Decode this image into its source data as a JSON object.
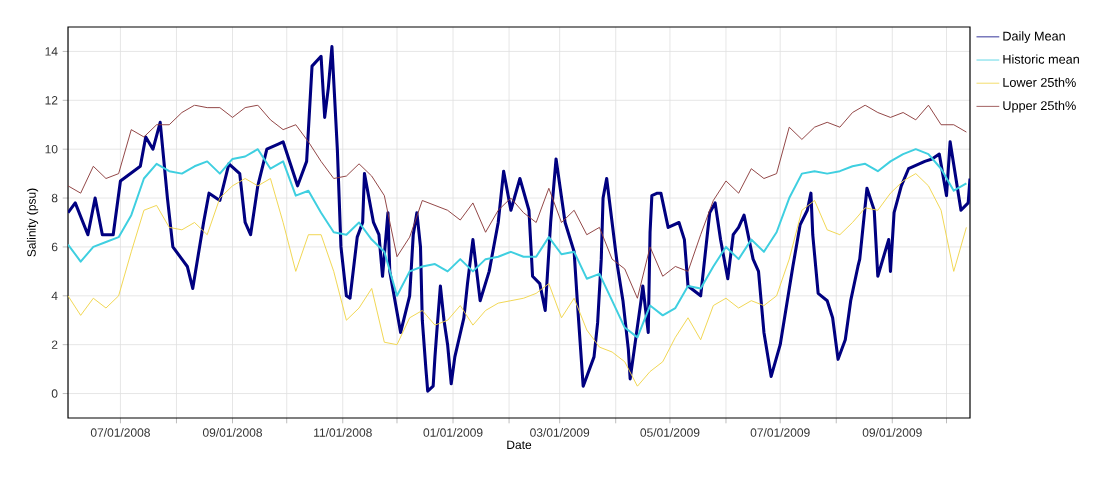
{
  "chart_data": {
    "type": "line",
    "xlabel": "Date",
    "ylabel": "Salinity (psu)",
    "xlim": [
      "2008-06-02",
      "2009-10-14"
    ],
    "ylim": [
      -1,
      15
    ],
    "xticks": [
      {
        "value": "2008-07-01",
        "label": "07/01/2008"
      },
      {
        "value": "2008-08-01",
        "label": null
      },
      {
        "value": "2008-09-01",
        "label": "09/01/2008"
      },
      {
        "value": "2008-10-01",
        "label": null
      },
      {
        "value": "2008-11-01",
        "label": "11/01/2008"
      },
      {
        "value": "2008-12-01",
        "label": null
      },
      {
        "value": "2009-01-01",
        "label": "01/01/2009"
      },
      {
        "value": "2009-02-01",
        "label": null
      },
      {
        "value": "2009-03-01",
        "label": "03/01/2009"
      },
      {
        "value": "2009-04-01",
        "label": null
      },
      {
        "value": "2009-05-01",
        "label": "05/01/2009"
      },
      {
        "value": "2009-06-01",
        "label": null
      },
      {
        "value": "2009-07-01",
        "label": "07/01/2009"
      },
      {
        "value": "2009-08-01",
        "label": null
      },
      {
        "value": "2009-09-01",
        "label": "09/01/2009"
      },
      {
        "value": "2009-10-01",
        "label": null
      }
    ],
    "yticks": [
      0,
      2,
      4,
      6,
      8,
      10,
      12,
      14
    ],
    "grid": true,
    "legend": "right",
    "x": [
      "2008-06-02",
      "2008-06-09",
      "2008-06-16",
      "2008-06-23",
      "2008-06-30",
      "2008-07-07",
      "2008-07-14",
      "2008-07-21",
      "2008-07-28",
      "2008-08-04",
      "2008-08-11",
      "2008-08-18",
      "2008-08-25",
      "2008-09-01",
      "2008-09-08",
      "2008-09-15",
      "2008-09-22",
      "2008-09-29",
      "2008-10-06",
      "2008-10-13",
      "2008-10-20",
      "2008-10-27",
      "2008-11-03",
      "2008-11-10",
      "2008-11-17",
      "2008-11-24",
      "2008-12-01",
      "2008-12-08",
      "2008-12-15",
      "2008-12-22",
      "2008-12-29",
      "2009-01-05",
      "2009-01-12",
      "2009-01-19",
      "2009-01-26",
      "2009-02-02",
      "2009-02-09",
      "2009-02-16",
      "2009-02-23",
      "2009-03-02",
      "2009-03-09",
      "2009-03-16",
      "2009-03-23",
      "2009-03-30",
      "2009-04-06",
      "2009-04-13",
      "2009-04-20",
      "2009-04-27",
      "2009-05-04",
      "2009-05-11",
      "2009-05-18",
      "2009-05-25",
      "2009-06-01",
      "2009-06-08",
      "2009-06-15",
      "2009-06-22",
      "2009-06-29",
      "2009-07-06",
      "2009-07-13",
      "2009-07-20",
      "2009-07-27",
      "2009-08-03",
      "2009-08-10",
      "2009-08-17",
      "2009-08-24",
      "2009-08-31",
      "2009-09-07",
      "2009-09-14",
      "2009-09-21",
      "2009-09-28",
      "2009-10-05",
      "2009-10-12"
    ],
    "series": [
      {
        "name": "Daily Mean",
        "color": "#000080",
        "x": [
          "2008-06-02",
          "2008-06-06",
          "2008-06-13",
          "2008-06-17",
          "2008-06-21",
          "2008-06-27",
          "2008-07-01",
          "2008-07-12",
          "2008-07-15",
          "2008-07-19",
          "2008-07-23",
          "2008-07-27",
          "2008-07-30",
          "2008-08-04",
          "2008-08-07",
          "2008-08-10",
          "2008-08-16",
          "2008-08-19",
          "2008-08-25",
          "2008-08-30",
          "2008-09-05",
          "2008-09-08",
          "2008-09-11",
          "2008-09-15",
          "2008-09-18",
          "2008-09-20",
          "2008-09-26",
          "2008-09-29",
          "2008-10-07",
          "2008-10-12",
          "2008-10-15",
          "2008-10-20",
          "2008-10-22",
          "2008-10-24",
          "2008-10-26",
          "2008-10-29",
          "2008-10-31",
          "2008-11-03",
          "2008-11-05",
          "2008-11-09",
          "2008-11-12",
          "2008-11-13",
          "2008-11-18",
          "2008-11-21",
          "2008-11-23",
          "2008-11-26",
          "2008-11-27",
          "2008-12-03",
          "2008-12-08",
          "2008-12-10",
          "2008-12-12",
          "2008-12-14",
          "2008-12-15",
          "2008-12-17",
          "2008-12-18",
          "2008-12-21",
          "2008-12-22",
          "2008-12-23",
          "2008-12-25",
          "2008-12-27",
          "2008-12-29",
          "2008-12-31",
          "2009-01-02",
          "2009-01-07",
          "2009-01-09",
          "2009-01-12",
          "2009-01-16",
          "2009-01-21",
          "2009-01-26",
          "2009-01-29",
          "2009-02-02",
          "2009-02-07",
          "2009-02-12",
          "2009-02-14",
          "2009-02-18",
          "2009-02-21",
          "2009-02-24",
          "2009-02-27",
          "2009-03-04",
          "2009-03-09",
          "2009-03-11",
          "2009-03-14",
          "2009-03-20",
          "2009-03-22",
          "2009-03-24",
          "2009-03-25",
          "2009-03-27",
          "2009-04-02",
          "2009-04-05",
          "2009-04-08",
          "2009-04-09",
          "2009-04-15",
          "2009-04-16",
          "2009-04-19",
          "2009-04-20",
          "2009-04-21",
          "2009-04-24",
          "2009-04-26",
          "2009-04-30",
          "2009-05-06",
          "2009-05-09",
          "2009-05-11",
          "2009-05-18",
          "2009-05-23",
          "2009-05-26",
          "2009-05-29",
          "2009-06-02",
          "2009-06-05",
          "2009-06-08",
          "2009-06-11",
          "2009-06-16",
          "2009-06-19",
          "2009-06-22",
          "2009-06-26",
          "2009-07-01",
          "2009-07-08",
          "2009-07-12",
          "2009-07-16",
          "2009-07-18",
          "2009-07-19",
          "2009-07-22",
          "2009-07-27",
          "2009-07-30",
          "2009-08-02",
          "2009-08-06",
          "2009-08-09",
          "2009-08-13",
          "2009-08-14",
          "2009-08-18",
          "2009-08-22",
          "2009-08-24",
          "2009-08-30",
          "2009-08-31",
          "2009-09-02",
          "2009-09-06",
          "2009-09-10",
          "2009-09-19",
          "2009-09-23",
          "2009-09-27",
          "2009-10-01",
          "2009-10-03",
          "2009-10-09",
          "2009-10-13",
          "2009-10-14"
        ],
        "values": [
          7.4,
          7.8,
          6.5,
          8.0,
          6.5,
          6.5,
          8.7,
          9.3,
          10.5,
          10.0,
          11.1,
          8.0,
          6.0,
          5.5,
          5.2,
          4.3,
          7.0,
          8.2,
          7.9,
          9.4,
          9.0,
          7.0,
          6.5,
          8.5,
          9.4,
          10.0,
          10.2,
          10.3,
          8.5,
          9.5,
          13.4,
          13.8,
          11.3,
          12.5,
          14.2,
          10.0,
          6.0,
          4.0,
          3.9,
          6.4,
          7.0,
          9.0,
          7.0,
          6.5,
          4.8,
          7.4,
          5.0,
          2.5,
          4.0,
          6.5,
          7.4,
          6.0,
          3.0,
          1.0,
          0.1,
          0.3,
          1.5,
          2.5,
          4.4,
          3.0,
          2.0,
          0.4,
          1.5,
          3.1,
          4.5,
          6.3,
          3.8,
          5.0,
          7.0,
          9.1,
          7.5,
          8.8,
          7.5,
          4.8,
          4.5,
          3.4,
          7.0,
          9.6,
          7.0,
          5.8,
          3.5,
          0.3,
          1.5,
          2.9,
          5.5,
          8.0,
          8.8,
          5.2,
          3.8,
          1.8,
          0.6,
          3.8,
          4.4,
          2.5,
          6.6,
          8.1,
          8.2,
          8.2,
          6.8,
          7.0,
          6.3,
          4.4,
          4.0,
          7.4,
          7.8,
          6.3,
          4.7,
          6.5,
          6.8,
          7.3,
          5.5,
          5.0,
          2.5,
          0.7,
          2.0,
          5.2,
          6.9,
          7.5,
          8.2,
          6.5,
          4.1,
          3.8,
          3.1,
          1.4,
          2.2,
          3.8,
          5.2,
          5.5,
          8.4,
          7.5,
          4.8,
          6.3,
          5.0,
          7.4,
          8.5,
          9.2,
          9.5,
          9.6,
          9.8,
          8.1,
          10.3,
          7.5,
          7.8,
          8.8
        ]
      },
      {
        "name": "Historic mean",
        "color": "#3fcfe0",
        "values": [
          6.1,
          5.4,
          6.0,
          6.2,
          6.4,
          7.3,
          8.8,
          9.4,
          9.1,
          9.0,
          9.3,
          9.5,
          9.0,
          9.6,
          9.7,
          10.0,
          9.2,
          9.5,
          8.1,
          8.3,
          7.4,
          6.6,
          6.5,
          7.0,
          6.3,
          5.8,
          4.0,
          5.0,
          5.2,
          5.3,
          5.0,
          5.5,
          5.0,
          5.5,
          5.6,
          5.8,
          5.6,
          5.6,
          6.4,
          5.7,
          5.8,
          4.7,
          4.9,
          3.8,
          2.7,
          2.3,
          3.6,
          3.2,
          3.5,
          4.4,
          4.3,
          5.2,
          6.0,
          5.5,
          6.3,
          5.8,
          6.6,
          8.0,
          9.0,
          9.1,
          9.0,
          9.1,
          9.3,
          9.4,
          9.1,
          9.5,
          9.8,
          10.0,
          9.8,
          9.2,
          8.3,
          8.6
        ]
      },
      {
        "name": "Lower 25th%",
        "color": "#f0d448",
        "values": [
          4.0,
          3.2,
          3.9,
          3.5,
          4.0,
          5.8,
          7.5,
          7.7,
          6.8,
          6.7,
          7.0,
          6.5,
          8.0,
          8.5,
          8.8,
          8.5,
          8.8,
          7.0,
          5.0,
          6.5,
          6.5,
          5.0,
          3.0,
          3.5,
          4.3,
          2.1,
          2.0,
          3.1,
          3.4,
          2.8,
          3.0,
          3.6,
          2.8,
          3.4,
          3.7,
          3.8,
          3.9,
          4.1,
          4.5,
          3.1,
          3.9,
          2.6,
          1.9,
          1.7,
          1.3,
          0.3,
          0.9,
          1.3,
          2.3,
          3.1,
          2.2,
          3.6,
          3.9,
          3.5,
          3.8,
          3.6,
          4.0,
          5.5,
          7.5,
          7.9,
          6.7,
          6.5,
          7.0,
          7.6,
          7.5,
          8.2,
          8.7,
          9.0,
          8.5,
          7.5,
          5.0,
          6.8
        ]
      },
      {
        "name": "Upper 25th%",
        "color": "#8b3a3a",
        "values": [
          8.5,
          8.2,
          9.3,
          8.8,
          9.0,
          10.8,
          10.5,
          11.0,
          11.0,
          11.5,
          11.8,
          11.7,
          11.7,
          11.3,
          11.7,
          11.8,
          11.2,
          10.8,
          11.0,
          10.3,
          9.5,
          8.8,
          8.9,
          9.4,
          8.9,
          8.1,
          5.6,
          6.4,
          7.9,
          7.7,
          7.5,
          7.1,
          7.8,
          6.6,
          7.5,
          8.0,
          7.4,
          7.0,
          8.4,
          7.0,
          7.5,
          6.5,
          6.8,
          5.5,
          5.1,
          3.9,
          6.0,
          4.8,
          5.2,
          5.0,
          6.5,
          7.9,
          8.7,
          8.2,
          9.2,
          8.8,
          9.0,
          10.9,
          10.4,
          10.9,
          11.1,
          10.9,
          11.5,
          11.8,
          11.5,
          11.3,
          11.5,
          11.2,
          11.8,
          11.0,
          11.0,
          10.7
        ]
      }
    ]
  }
}
